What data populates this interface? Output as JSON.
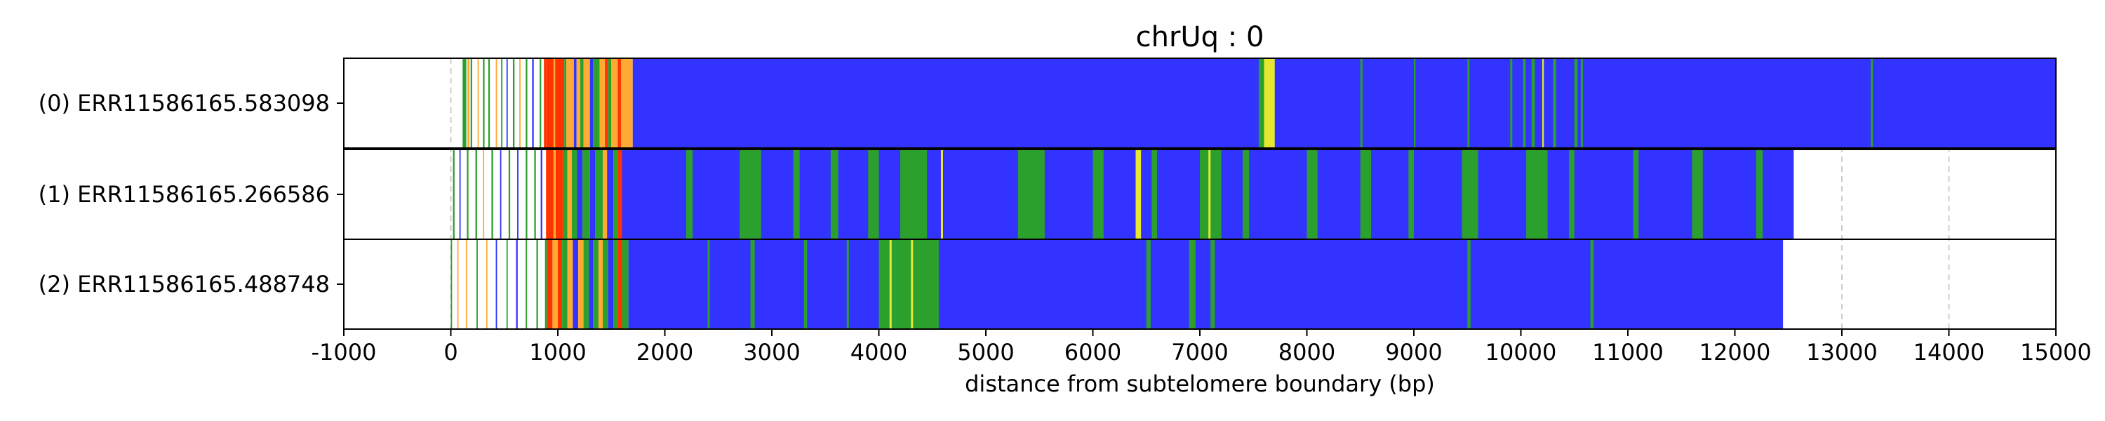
{
  "chart_data": {
    "type": "bar",
    "title": "chrUq : 0",
    "xlabel": "distance from subtelomere boundary (bp)",
    "ylabel": "",
    "xlim": [
      -1000,
      15000
    ],
    "xticks": [
      "-1000",
      "0",
      "1000",
      "2000",
      "3000",
      "4000",
      "5000",
      "6000",
      "7000",
      "8000",
      "9000",
      "10000",
      "11000",
      "12000",
      "13000",
      "14000",
      "15000"
    ],
    "grid": "vertical dashed",
    "colors": {
      "blue": "#3333ff",
      "green": "#2ca02c",
      "orange": "#ffaa33",
      "red": "#ff3300",
      "yellow": "#e6e633",
      "grid": "#cccccc"
    },
    "reads": [
      {
        "label": "(0) ERR11586165.583098",
        "segments": [
          {
            "start": 110,
            "end": 145,
            "color": "#2ca02c"
          },
          {
            "start": 155,
            "end": 175,
            "color": "#ffaa33"
          },
          {
            "start": 185,
            "end": 200,
            "color": "#2ca02c"
          },
          {
            "start": 250,
            "end": 262,
            "color": "#ffaa33"
          },
          {
            "start": 300,
            "end": 315,
            "color": "#2ca02c"
          },
          {
            "start": 350,
            "end": 365,
            "color": "#2ca02c"
          },
          {
            "start": 420,
            "end": 432,
            "color": "#ffaa33"
          },
          {
            "start": 470,
            "end": 482,
            "color": "#2ca02c"
          },
          {
            "start": 520,
            "end": 532,
            "color": "#3333ff"
          },
          {
            "start": 580,
            "end": 595,
            "color": "#2ca02c"
          },
          {
            "start": 640,
            "end": 652,
            "color": "#ffaa33"
          },
          {
            "start": 700,
            "end": 715,
            "color": "#2ca02c"
          },
          {
            "start": 760,
            "end": 775,
            "color": "#3333ff"
          },
          {
            "start": 830,
            "end": 845,
            "color": "#2ca02c"
          },
          {
            "start": 870,
            "end": 890,
            "color": "#ff3300"
          },
          {
            "start": 890,
            "end": 960,
            "color": "#ff3300"
          },
          {
            "start": 960,
            "end": 975,
            "color": "#ffaa33"
          },
          {
            "start": 975,
            "end": 1060,
            "color": "#ff3300"
          },
          {
            "start": 1060,
            "end": 1080,
            "color": "#2ca02c"
          },
          {
            "start": 1080,
            "end": 1150,
            "color": "#ffaa33"
          },
          {
            "start": 1150,
            "end": 1175,
            "color": "#3333ff"
          },
          {
            "start": 1175,
            "end": 1210,
            "color": "#ffaa33"
          },
          {
            "start": 1210,
            "end": 1240,
            "color": "#2ca02c"
          },
          {
            "start": 1240,
            "end": 1300,
            "color": "#ffaa33"
          },
          {
            "start": 1300,
            "end": 1330,
            "color": "#3333ff"
          },
          {
            "start": 1330,
            "end": 1390,
            "color": "#2ca02c"
          },
          {
            "start": 1390,
            "end": 1440,
            "color": "#ffaa33"
          },
          {
            "start": 1440,
            "end": 1470,
            "color": "#ff3300"
          },
          {
            "start": 1470,
            "end": 1500,
            "color": "#2ca02c"
          },
          {
            "start": 1500,
            "end": 1560,
            "color": "#ffaa33"
          },
          {
            "start": 1560,
            "end": 1590,
            "color": "#ff3300"
          },
          {
            "start": 1590,
            "end": 1700,
            "color": "#ffaa33"
          },
          {
            "start": 1700,
            "end": 15000,
            "color": "#3333ff"
          },
          {
            "start": 7550,
            "end": 7600,
            "color": "#2ca02c"
          },
          {
            "start": 7600,
            "end": 7700,
            "color": "#e6e633"
          },
          {
            "start": 8500,
            "end": 8520,
            "color": "#2ca02c"
          },
          {
            "start": 9000,
            "end": 9015,
            "color": "#2ca02c"
          },
          {
            "start": 9500,
            "end": 9520,
            "color": "#2ca02c"
          },
          {
            "start": 9900,
            "end": 9920,
            "color": "#2ca02c"
          },
          {
            "start": 10020,
            "end": 10045,
            "color": "#2ca02c"
          },
          {
            "start": 10100,
            "end": 10130,
            "color": "#2ca02c"
          },
          {
            "start": 10200,
            "end": 10215,
            "color": "#e6e633"
          },
          {
            "start": 10300,
            "end": 10330,
            "color": "#2ca02c"
          },
          {
            "start": 10500,
            "end": 10530,
            "color": "#2ca02c"
          },
          {
            "start": 10560,
            "end": 10580,
            "color": "#2ca02c"
          },
          {
            "start": 13270,
            "end": 13290,
            "color": "#2ca02c"
          }
        ]
      },
      {
        "label": "(1) ERR11586165.266586",
        "segments": [
          {
            "start": 20,
            "end": 35,
            "color": "#2ca02c"
          },
          {
            "start": 80,
            "end": 92,
            "color": "#3333ff"
          },
          {
            "start": 150,
            "end": 165,
            "color": "#2ca02c"
          },
          {
            "start": 230,
            "end": 245,
            "color": "#2ca02c"
          },
          {
            "start": 300,
            "end": 312,
            "color": "#ffaa33"
          },
          {
            "start": 380,
            "end": 395,
            "color": "#2ca02c"
          },
          {
            "start": 460,
            "end": 472,
            "color": "#3333ff"
          },
          {
            "start": 540,
            "end": 555,
            "color": "#2ca02c"
          },
          {
            "start": 620,
            "end": 632,
            "color": "#3333ff"
          },
          {
            "start": 700,
            "end": 715,
            "color": "#2ca02c"
          },
          {
            "start": 780,
            "end": 795,
            "color": "#2ca02c"
          },
          {
            "start": 840,
            "end": 855,
            "color": "#3333ff"
          },
          {
            "start": 890,
            "end": 960,
            "color": "#ff3300"
          },
          {
            "start": 960,
            "end": 980,
            "color": "#ffaa33"
          },
          {
            "start": 980,
            "end": 1050,
            "color": "#ff3300"
          },
          {
            "start": 1050,
            "end": 1090,
            "color": "#2ca02c"
          },
          {
            "start": 1090,
            "end": 1130,
            "color": "#ffaa33"
          },
          {
            "start": 1130,
            "end": 1180,
            "color": "#2ca02c"
          },
          {
            "start": 1180,
            "end": 1230,
            "color": "#3333ff"
          },
          {
            "start": 1230,
            "end": 1300,
            "color": "#2ca02c"
          },
          {
            "start": 1300,
            "end": 1350,
            "color": "#3333ff"
          },
          {
            "start": 1350,
            "end": 1420,
            "color": "#2ca02c"
          },
          {
            "start": 1420,
            "end": 1460,
            "color": "#ffaa33"
          },
          {
            "start": 1460,
            "end": 1520,
            "color": "#3333ff"
          },
          {
            "start": 1520,
            "end": 1560,
            "color": "#2ca02c"
          },
          {
            "start": 1560,
            "end": 1600,
            "color": "#ff3300"
          },
          {
            "start": 1600,
            "end": 12550,
            "color": "#3333ff"
          },
          {
            "start": 2200,
            "end": 2260,
            "color": "#2ca02c"
          },
          {
            "start": 2700,
            "end": 2900,
            "color": "#2ca02c"
          },
          {
            "start": 3200,
            "end": 3260,
            "color": "#2ca02c"
          },
          {
            "start": 3550,
            "end": 3620,
            "color": "#2ca02c"
          },
          {
            "start": 3900,
            "end": 4000,
            "color": "#2ca02c"
          },
          {
            "start": 4200,
            "end": 4450,
            "color": "#2ca02c"
          },
          {
            "start": 4580,
            "end": 4600,
            "color": "#e6e633"
          },
          {
            "start": 5300,
            "end": 5550,
            "color": "#2ca02c"
          },
          {
            "start": 6000,
            "end": 6100,
            "color": "#2ca02c"
          },
          {
            "start": 6400,
            "end": 6450,
            "color": "#e6e633"
          },
          {
            "start": 6550,
            "end": 6600,
            "color": "#2ca02c"
          },
          {
            "start": 7000,
            "end": 7200,
            "color": "#2ca02c"
          },
          {
            "start": 7080,
            "end": 7100,
            "color": "#e6e633"
          },
          {
            "start": 7400,
            "end": 7460,
            "color": "#2ca02c"
          },
          {
            "start": 8000,
            "end": 8100,
            "color": "#2ca02c"
          },
          {
            "start": 8500,
            "end": 8600,
            "color": "#2ca02c"
          },
          {
            "start": 8950,
            "end": 9000,
            "color": "#2ca02c"
          },
          {
            "start": 9450,
            "end": 9600,
            "color": "#2ca02c"
          },
          {
            "start": 10050,
            "end": 10250,
            "color": "#2ca02c"
          },
          {
            "start": 10450,
            "end": 10500,
            "color": "#2ca02c"
          },
          {
            "start": 11050,
            "end": 11100,
            "color": "#2ca02c"
          },
          {
            "start": 11600,
            "end": 11700,
            "color": "#2ca02c"
          },
          {
            "start": 12200,
            "end": 12260,
            "color": "#2ca02c"
          }
        ]
      },
      {
        "label": "(2) ERR11586165.488748",
        "segments": [
          {
            "start": 0,
            "end": 12,
            "color": "#2ca02c"
          },
          {
            "start": 60,
            "end": 72,
            "color": "#ffaa33"
          },
          {
            "start": 140,
            "end": 152,
            "color": "#ffaa33"
          },
          {
            "start": 240,
            "end": 252,
            "color": "#2ca02c"
          },
          {
            "start": 330,
            "end": 342,
            "color": "#ffaa33"
          },
          {
            "start": 420,
            "end": 432,
            "color": "#3333ff"
          },
          {
            "start": 520,
            "end": 532,
            "color": "#2ca02c"
          },
          {
            "start": 610,
            "end": 625,
            "color": "#3333ff"
          },
          {
            "start": 700,
            "end": 712,
            "color": "#2ca02c"
          },
          {
            "start": 800,
            "end": 815,
            "color": "#2ca02c"
          },
          {
            "start": 880,
            "end": 900,
            "color": "#2ca02c"
          },
          {
            "start": 900,
            "end": 950,
            "color": "#ff3300"
          },
          {
            "start": 950,
            "end": 1000,
            "color": "#ffaa33"
          },
          {
            "start": 1000,
            "end": 1040,
            "color": "#ff3300"
          },
          {
            "start": 1040,
            "end": 1090,
            "color": "#2ca02c"
          },
          {
            "start": 1090,
            "end": 1140,
            "color": "#ffaa33"
          },
          {
            "start": 1140,
            "end": 1190,
            "color": "#3333ff"
          },
          {
            "start": 1190,
            "end": 1240,
            "color": "#ffaa33"
          },
          {
            "start": 1240,
            "end": 1290,
            "color": "#2ca02c"
          },
          {
            "start": 1290,
            "end": 1330,
            "color": "#3333ff"
          },
          {
            "start": 1330,
            "end": 1380,
            "color": "#2ca02c"
          },
          {
            "start": 1380,
            "end": 1420,
            "color": "#ffaa33"
          },
          {
            "start": 1420,
            "end": 1470,
            "color": "#2ca02c"
          },
          {
            "start": 1470,
            "end": 1520,
            "color": "#3333ff"
          },
          {
            "start": 1520,
            "end": 1560,
            "color": "#2ca02c"
          },
          {
            "start": 1560,
            "end": 1600,
            "color": "#ff3300"
          },
          {
            "start": 1600,
            "end": 1660,
            "color": "#2ca02c"
          },
          {
            "start": 1660,
            "end": 12450,
            "color": "#3333ff"
          },
          {
            "start": 2400,
            "end": 2420,
            "color": "#2ca02c"
          },
          {
            "start": 2800,
            "end": 2840,
            "color": "#2ca02c"
          },
          {
            "start": 3300,
            "end": 3330,
            "color": "#2ca02c"
          },
          {
            "start": 3700,
            "end": 3720,
            "color": "#2ca02c"
          },
          {
            "start": 4000,
            "end": 4560,
            "color": "#2ca02c"
          },
          {
            "start": 4100,
            "end": 4120,
            "color": "#e6e633"
          },
          {
            "start": 4300,
            "end": 4320,
            "color": "#e6e633"
          },
          {
            "start": 6500,
            "end": 6540,
            "color": "#2ca02c"
          },
          {
            "start": 6900,
            "end": 6960,
            "color": "#2ca02c"
          },
          {
            "start": 7100,
            "end": 7140,
            "color": "#2ca02c"
          },
          {
            "start": 9500,
            "end": 9530,
            "color": "#2ca02c"
          },
          {
            "start": 10650,
            "end": 10680,
            "color": "#2ca02c"
          }
        ]
      }
    ]
  }
}
